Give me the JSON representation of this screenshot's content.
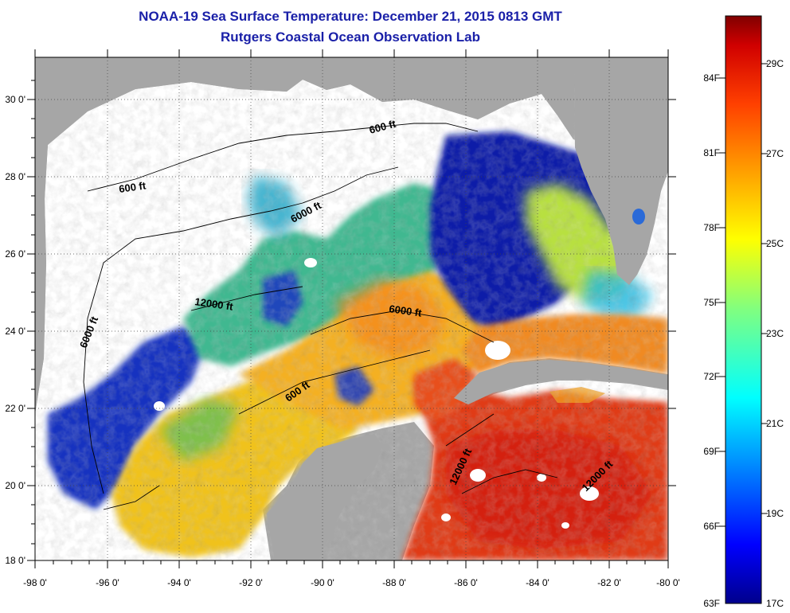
{
  "title": "NOAA-19 Sea Surface Temperature:  December 21, 2015 0813 GMT",
  "subtitle": "Rutgers Coastal Ocean Observation Lab",
  "map": {
    "lon_ticks": [
      "-98 0'",
      "-96 0'",
      "-94 0'",
      "-92 0'",
      "-90 0'",
      "-88 0'",
      "-86 0'",
      "-84 0'",
      "-82 0'",
      "-80 0'"
    ],
    "lat_ticks": [
      "30 0'",
      "28 0'",
      "26 0'",
      "24 0'",
      "22 0'",
      "20 0'",
      "18 0'"
    ],
    "lon_range": [
      -98,
      -80
    ],
    "lat_range": [
      18,
      31
    ],
    "contours": {
      "c600_ne": "600 ft",
      "c600_nw": "600 ft",
      "c6000_n": "6000 ft",
      "c6000_w": "6000 ft",
      "c12000_w": "12000 ft",
      "c6000_e": "6000 ft",
      "c600_s": "600 ft",
      "c12000_s": "12000 ft",
      "c12000_se": "12000 ft"
    },
    "colors": {
      "land": "#a6a6a6",
      "no_data": "#ffffff",
      "cold": "#0000a0",
      "warm": "#e01a10"
    }
  },
  "colorbar": {
    "f_labels": [
      "84F",
      "81F",
      "78F",
      "75F",
      "72F",
      "69F",
      "66F",
      "63F"
    ],
    "c_labels": [
      "29C",
      "27C",
      "25C",
      "23C",
      "21C",
      "19C",
      "17C"
    ],
    "range_c": [
      17,
      30
    ],
    "range_f": [
      63,
      86
    ]
  }
}
